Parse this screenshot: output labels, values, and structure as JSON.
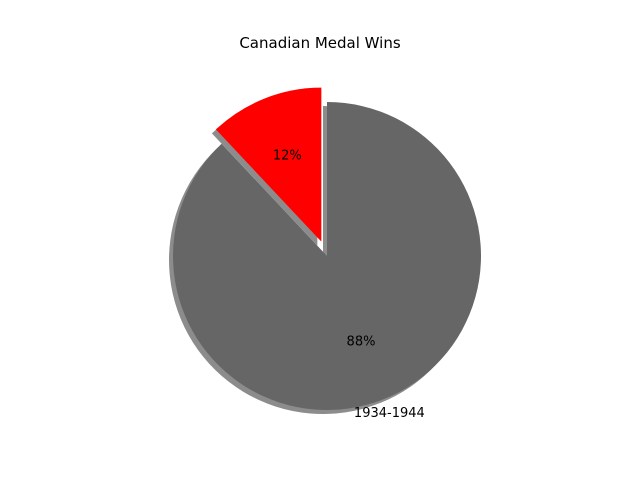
{
  "chart_data": {
    "type": "pie",
    "title": "Canadian Medal Wins",
    "slices": [
      {
        "label": "",
        "value": 12,
        "pct_label": "12%",
        "color": "#ff0000",
        "exploded": true
      },
      {
        "label": "1934-1944",
        "value": 88,
        "pct_label": "88%",
        "color": "#666666",
        "exploded": false
      }
    ],
    "shadow": true,
    "start_angle_deg": 90,
    "direction": "counterclockwise"
  }
}
